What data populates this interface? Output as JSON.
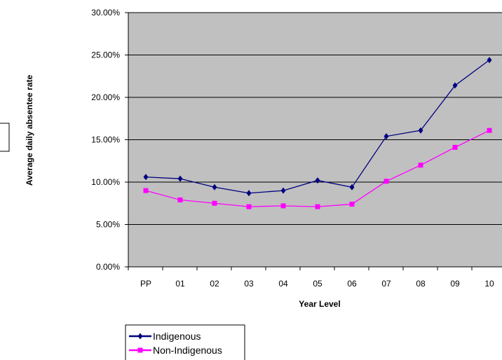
{
  "chart_data": {
    "type": "line",
    "title": "",
    "xlabel": "Year Level",
    "ylabel": "Average daily absentee rate",
    "categories": [
      "PP",
      "01",
      "02",
      "03",
      "04",
      "05",
      "06",
      "07",
      "08",
      "09",
      "10"
    ],
    "ylim": [
      0,
      0.3
    ],
    "yticks": [
      "0.00%",
      "5.00%",
      "10.00%",
      "15.00%",
      "20.00%",
      "25.00%",
      "30.00%"
    ],
    "grid": true,
    "plot_background": "#C0C0C0",
    "legend_position": "bottom-left",
    "series": [
      {
        "name": "Indigenous",
        "color": "#000080",
        "marker": "diamond",
        "values": [
          0.106,
          0.104,
          0.094,
          0.087,
          0.09,
          0.102,
          0.094,
          0.154,
          0.161,
          0.214,
          0.244
        ]
      },
      {
        "name": "Non-Indigenous",
        "color": "#FF00FF",
        "marker": "square",
        "values": [
          0.09,
          0.079,
          0.075,
          0.071,
          0.072,
          0.071,
          0.074,
          0.101,
          0.12,
          0.141,
          0.161
        ]
      }
    ]
  }
}
